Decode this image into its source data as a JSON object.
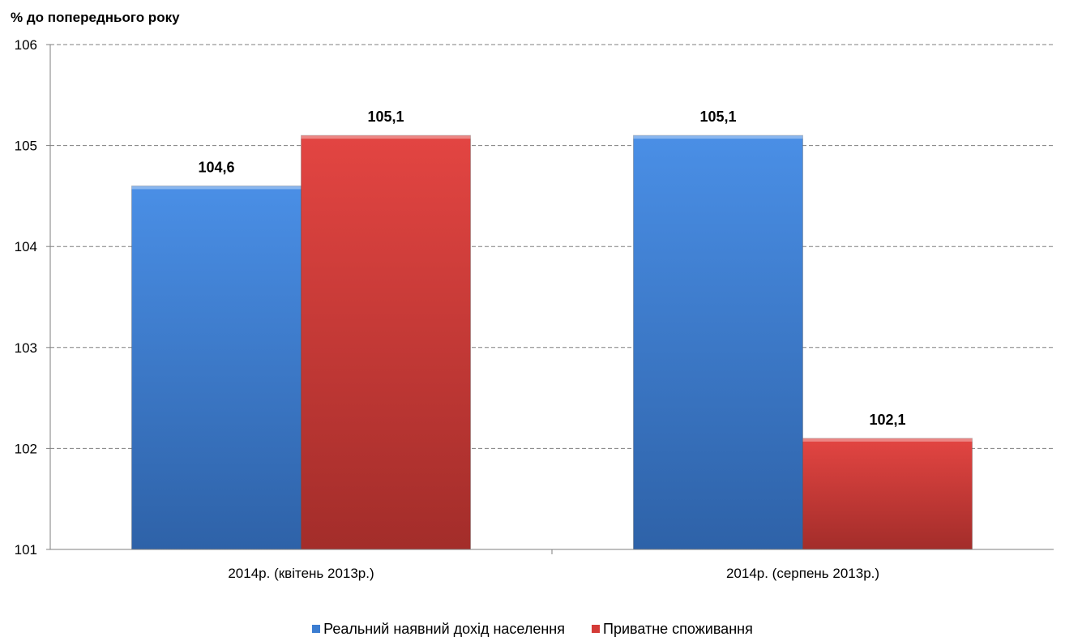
{
  "chart_data": {
    "type": "bar",
    "title": "",
    "ylabel": "% до попереднього року",
    "xlabel": "",
    "categories": [
      "2014р. (квітень 2013р.)",
      "2014р. (серпень 2013р.)"
    ],
    "series": [
      {
        "name": "Реальний наявний дохід населення",
        "values": [
          104.6,
          105.1
        ],
        "labels": [
          "104,6",
          "105,1"
        ],
        "color": "#3b7dd1"
      },
      {
        "name": "Приватне споживання",
        "values": [
          105.1,
          102.1
        ],
        "labels": [
          "105,1",
          "102,1"
        ],
        "color": "#d43b37"
      }
    ],
    "ylim": [
      101,
      106
    ],
    "yticks": [
      101,
      102,
      103,
      104,
      105,
      106
    ],
    "grid": true,
    "legend": "bottom"
  }
}
